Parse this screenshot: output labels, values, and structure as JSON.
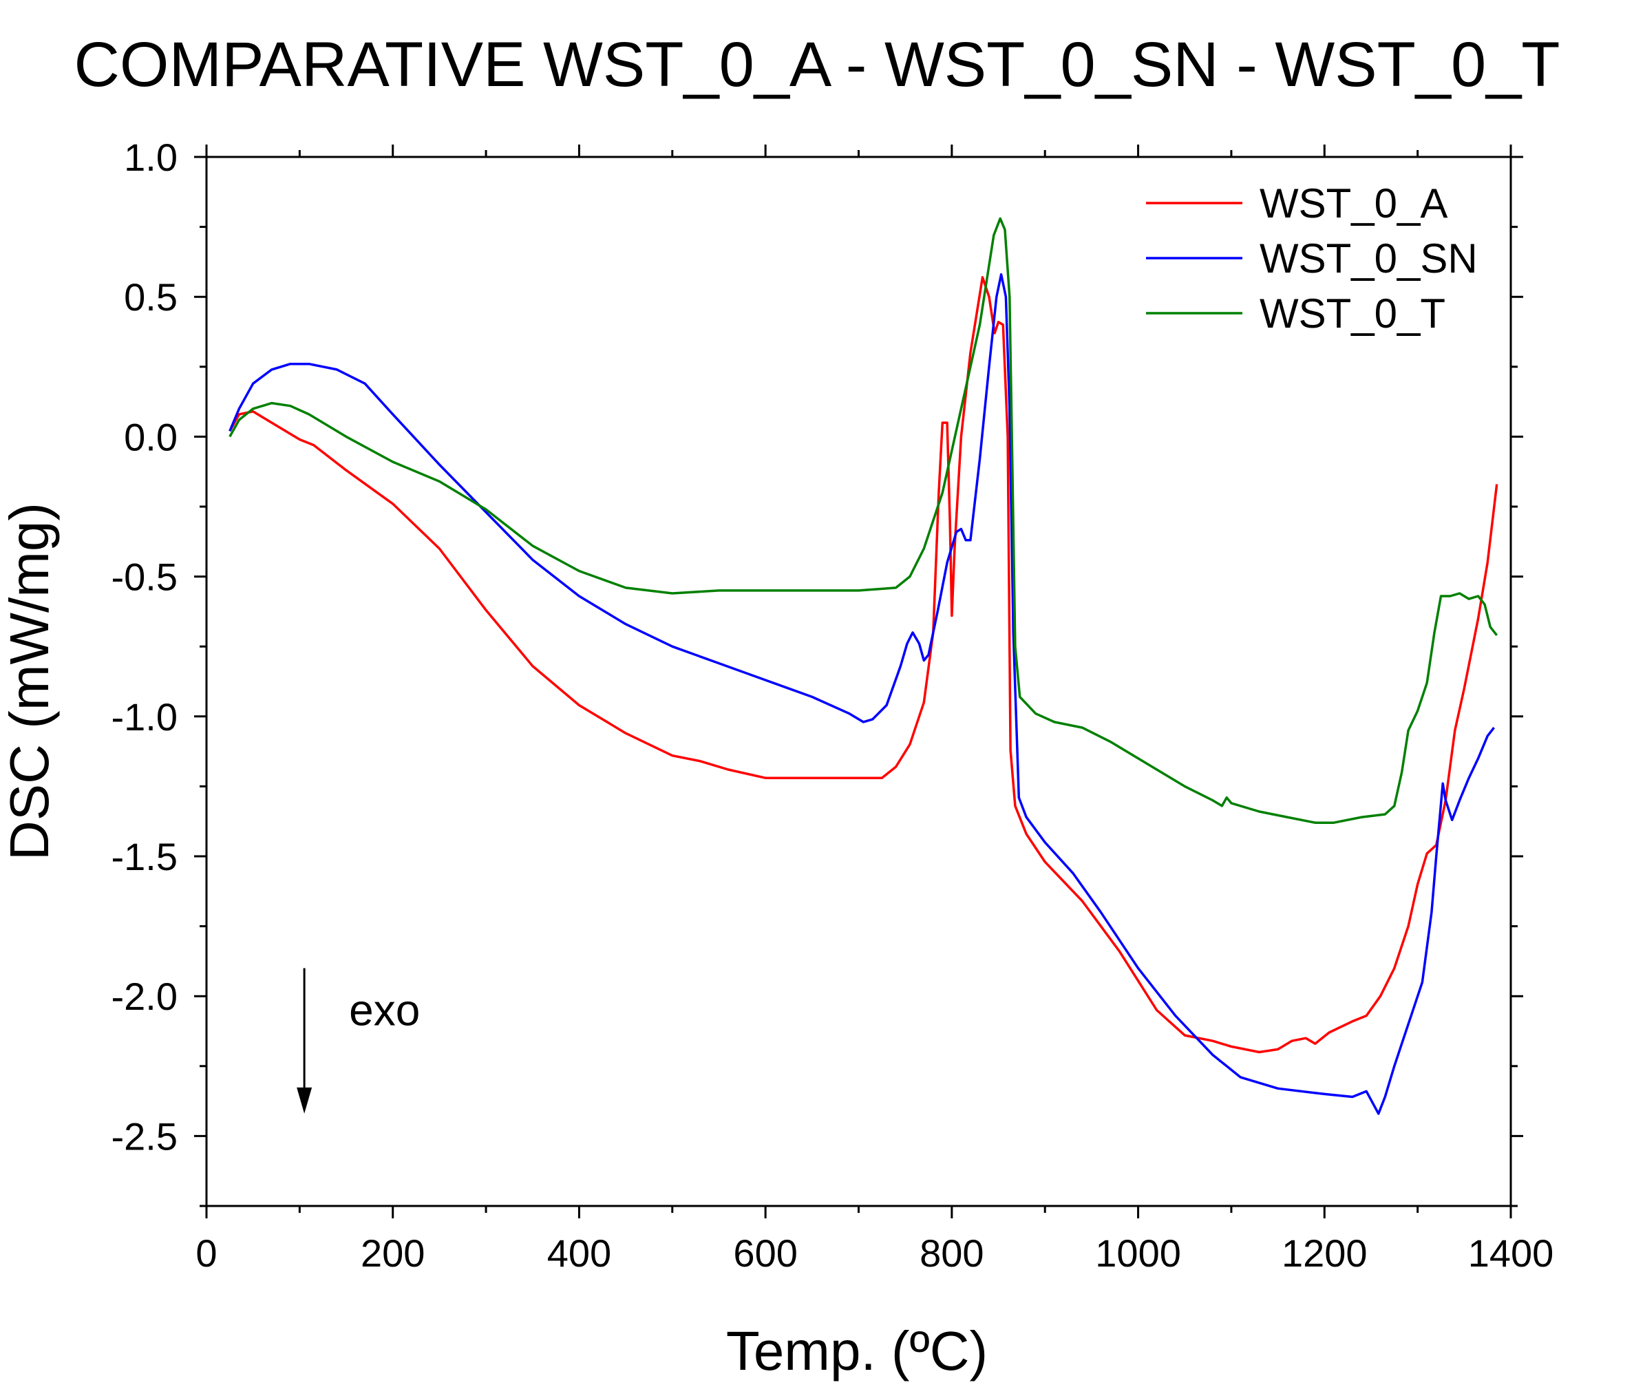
{
  "chart_data": {
    "type": "line",
    "title": "COMPARATIVE WST_0_A - WST_0_SN - WST_0_T",
    "xlabel": "Temp. (ºC)",
    "ylabel": "DSC (mW/mg)",
    "xlim": [
      0,
      1400
    ],
    "ylim": [
      -2.75,
      1.0
    ],
    "xticks": [
      0,
      200,
      400,
      600,
      800,
      1000,
      1200,
      1400
    ],
    "xtick_labels": [
      "0",
      "200",
      "400",
      "600",
      "800",
      "1000",
      "1200",
      "1400"
    ],
    "xminor": [
      100,
      300,
      500,
      700,
      900,
      1100,
      1300
    ],
    "yticks": [
      1.0,
      0.5,
      0.0,
      -0.5,
      -1.0,
      -1.5,
      -2.0,
      -2.5
    ],
    "ytick_labels": [
      "1.0",
      "0.5",
      "0.0",
      "-0.5",
      "-1.0",
      "-1.5",
      "-2.0",
      "-2.5"
    ],
    "yminor": [
      0.75,
      0.25,
      -0.25,
      -0.75,
      -1.25,
      -1.75,
      -2.25,
      -2.75
    ],
    "legend_position": "top-right",
    "annotation": {
      "text": "exo",
      "arrow_from": [
        105,
        -1.9
      ],
      "arrow_to": [
        105,
        -2.42
      ]
    },
    "series": [
      {
        "name": "WST_0_A",
        "color": "#ff0000",
        "points": [
          [
            25,
            0.02
          ],
          [
            35,
            0.08
          ],
          [
            50,
            0.09
          ],
          [
            70,
            0.05
          ],
          [
            100,
            -0.01
          ],
          [
            115,
            -0.03
          ],
          [
            150,
            -0.12
          ],
          [
            200,
            -0.24
          ],
          [
            250,
            -0.4
          ],
          [
            300,
            -0.62
          ],
          [
            350,
            -0.82
          ],
          [
            400,
            -0.96
          ],
          [
            450,
            -1.06
          ],
          [
            500,
            -1.14
          ],
          [
            530,
            -1.16
          ],
          [
            560,
            -1.19
          ],
          [
            600,
            -1.22
          ],
          [
            650,
            -1.22
          ],
          [
            700,
            -1.22
          ],
          [
            725,
            -1.22
          ],
          [
            740,
            -1.18
          ],
          [
            755,
            -1.1
          ],
          [
            770,
            -0.95
          ],
          [
            780,
            -0.7
          ],
          [
            786,
            -0.2
          ],
          [
            790,
            0.05
          ],
          [
            795,
            0.05
          ],
          [
            798,
            -0.3
          ],
          [
            800,
            -0.64
          ],
          [
            803,
            -0.4
          ],
          [
            810,
            0.0
          ],
          [
            820,
            0.3
          ],
          [
            833,
            0.57
          ],
          [
            840,
            0.5
          ],
          [
            846,
            0.37
          ],
          [
            850,
            0.41
          ],
          [
            855,
            0.4
          ],
          [
            860,
            0.0
          ],
          [
            863,
            -1.12
          ],
          [
            868,
            -1.32
          ],
          [
            880,
            -1.42
          ],
          [
            900,
            -1.52
          ],
          [
            940,
            -1.66
          ],
          [
            980,
            -1.84
          ],
          [
            1020,
            -2.05
          ],
          [
            1050,
            -2.14
          ],
          [
            1080,
            -2.16
          ],
          [
            1100,
            -2.18
          ],
          [
            1130,
            -2.2
          ],
          [
            1150,
            -2.19
          ],
          [
            1165,
            -2.16
          ],
          [
            1180,
            -2.15
          ],
          [
            1190,
            -2.17
          ],
          [
            1205,
            -2.13
          ],
          [
            1230,
            -2.09
          ],
          [
            1245,
            -2.07
          ],
          [
            1260,
            -2.0
          ],
          [
            1275,
            -1.9
          ],
          [
            1290,
            -1.75
          ],
          [
            1300,
            -1.6
          ],
          [
            1310,
            -1.49
          ],
          [
            1320,
            -1.46
          ],
          [
            1330,
            -1.3
          ],
          [
            1340,
            -1.05
          ],
          [
            1350,
            -0.9
          ],
          [
            1365,
            -0.65
          ],
          [
            1375,
            -0.45
          ],
          [
            1385,
            -0.17
          ]
        ]
      },
      {
        "name": "WST_0_SN",
        "color": "#0000ff",
        "points": [
          [
            25,
            0.02
          ],
          [
            35,
            0.1
          ],
          [
            50,
            0.19
          ],
          [
            70,
            0.24
          ],
          [
            90,
            0.26
          ],
          [
            110,
            0.26
          ],
          [
            140,
            0.24
          ],
          [
            170,
            0.19
          ],
          [
            200,
            0.08
          ],
          [
            250,
            -0.1
          ],
          [
            300,
            -0.27
          ],
          [
            350,
            -0.44
          ],
          [
            400,
            -0.57
          ],
          [
            450,
            -0.67
          ],
          [
            500,
            -0.75
          ],
          [
            550,
            -0.81
          ],
          [
            600,
            -0.87
          ],
          [
            650,
            -0.93
          ],
          [
            690,
            -0.99
          ],
          [
            705,
            -1.02
          ],
          [
            715,
            -1.01
          ],
          [
            730,
            -0.96
          ],
          [
            745,
            -0.82
          ],
          [
            752,
            -0.74
          ],
          [
            758,
            -0.7
          ],
          [
            765,
            -0.74
          ],
          [
            770,
            -0.8
          ],
          [
            775,
            -0.78
          ],
          [
            785,
            -0.62
          ],
          [
            795,
            -0.45
          ],
          [
            805,
            -0.34
          ],
          [
            810,
            -0.33
          ],
          [
            815,
            -0.37
          ],
          [
            820,
            -0.37
          ],
          [
            830,
            -0.08
          ],
          [
            840,
            0.25
          ],
          [
            848,
            0.5
          ],
          [
            853,
            0.58
          ],
          [
            858,
            0.5
          ],
          [
            862,
            0.1
          ],
          [
            866,
            -0.7
          ],
          [
            872,
            -1.29
          ],
          [
            880,
            -1.36
          ],
          [
            900,
            -1.45
          ],
          [
            930,
            -1.56
          ],
          [
            960,
            -1.7
          ],
          [
            1000,
            -1.9
          ],
          [
            1040,
            -2.07
          ],
          [
            1080,
            -2.21
          ],
          [
            1110,
            -2.29
          ],
          [
            1150,
            -2.33
          ],
          [
            1200,
            -2.35
          ],
          [
            1230,
            -2.36
          ],
          [
            1245,
            -2.34
          ],
          [
            1258,
            -2.42
          ],
          [
            1265,
            -2.36
          ],
          [
            1275,
            -2.25
          ],
          [
            1285,
            -2.15
          ],
          [
            1295,
            -2.05
          ],
          [
            1305,
            -1.95
          ],
          [
            1315,
            -1.7
          ],
          [
            1320,
            -1.5
          ],
          [
            1327,
            -1.24
          ],
          [
            1330,
            -1.3
          ],
          [
            1337,
            -1.37
          ],
          [
            1345,
            -1.3
          ],
          [
            1355,
            -1.22
          ],
          [
            1365,
            -1.15
          ],
          [
            1375,
            -1.07
          ],
          [
            1382,
            -1.04
          ]
        ]
      },
      {
        "name": "WST_0_T",
        "color": "#008000",
        "points": [
          [
            25,
            0.0
          ],
          [
            35,
            0.06
          ],
          [
            50,
            0.1
          ],
          [
            70,
            0.12
          ],
          [
            90,
            0.11
          ],
          [
            110,
            0.08
          ],
          [
            150,
            0.0
          ],
          [
            200,
            -0.09
          ],
          [
            250,
            -0.16
          ],
          [
            300,
            -0.26
          ],
          [
            350,
            -0.39
          ],
          [
            400,
            -0.48
          ],
          [
            450,
            -0.54
          ],
          [
            500,
            -0.56
          ],
          [
            550,
            -0.55
          ],
          [
            600,
            -0.55
          ],
          [
            650,
            -0.55
          ],
          [
            700,
            -0.55
          ],
          [
            740,
            -0.54
          ],
          [
            755,
            -0.5
          ],
          [
            770,
            -0.4
          ],
          [
            790,
            -0.2
          ],
          [
            810,
            0.1
          ],
          [
            830,
            0.4
          ],
          [
            845,
            0.72
          ],
          [
            852,
            0.78
          ],
          [
            857,
            0.74
          ],
          [
            862,
            0.5
          ],
          [
            865,
            -0.1
          ],
          [
            868,
            -0.75
          ],
          [
            873,
            -0.93
          ],
          [
            890,
            -0.99
          ],
          [
            910,
            -1.02
          ],
          [
            940,
            -1.04
          ],
          [
            970,
            -1.09
          ],
          [
            1010,
            -1.17
          ],
          [
            1050,
            -1.25
          ],
          [
            1080,
            -1.3
          ],
          [
            1090,
            -1.32
          ],
          [
            1095,
            -1.29
          ],
          [
            1100,
            -1.31
          ],
          [
            1130,
            -1.34
          ],
          [
            1160,
            -1.36
          ],
          [
            1190,
            -1.38
          ],
          [
            1210,
            -1.38
          ],
          [
            1240,
            -1.36
          ],
          [
            1265,
            -1.35
          ],
          [
            1275,
            -1.32
          ],
          [
            1283,
            -1.2
          ],
          [
            1290,
            -1.05
          ],
          [
            1300,
            -0.98
          ],
          [
            1310,
            -0.88
          ],
          [
            1318,
            -0.7
          ],
          [
            1325,
            -0.57
          ],
          [
            1335,
            -0.57
          ],
          [
            1345,
            -0.56
          ],
          [
            1355,
            -0.58
          ],
          [
            1365,
            -0.57
          ],
          [
            1372,
            -0.6
          ],
          [
            1378,
            -0.68
          ],
          [
            1385,
            -0.71
          ]
        ]
      }
    ]
  }
}
